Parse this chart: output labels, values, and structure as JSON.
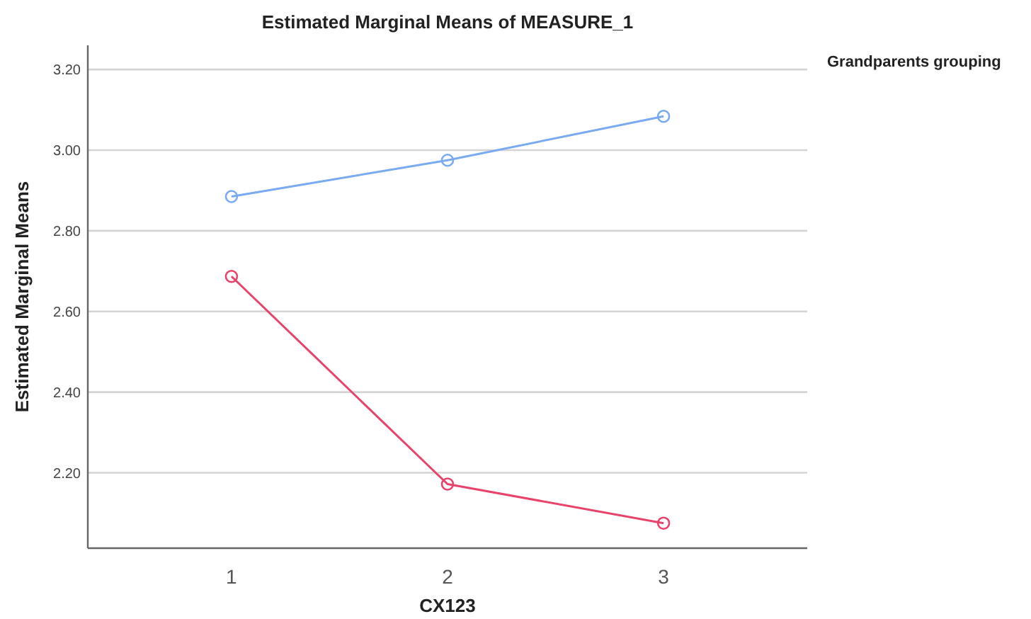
{
  "chart_data": {
    "type": "line",
    "title": "Estimated Marginal Means of MEASURE_1",
    "xlabel": "CX123",
    "ylabel": "Estimated Marginal Means",
    "legend_title": "Grandparents grouping",
    "categories": [
      "1",
      "2",
      "3"
    ],
    "series": [
      {
        "color": "#7aaaf0",
        "values": [
          2.885,
          2.975,
          3.084
        ]
      },
      {
        "color": "#e8436a",
        "values": [
          2.687,
          2.172,
          2.075
        ]
      }
    ],
    "ylim": [
      2.013,
      3.26
    ],
    "yticks": [
      {
        "value": 2.2,
        "label": "2.20"
      },
      {
        "value": 2.4,
        "label": "2.40"
      },
      {
        "value": 2.6,
        "label": "2.60"
      },
      {
        "value": 2.8,
        "label": "2.80"
      },
      {
        "value": 3.0,
        "label": "3.00"
      },
      {
        "value": 3.2,
        "label": "3.20"
      }
    ],
    "grid": "y",
    "marker": "circle",
    "line_style": "solid"
  }
}
